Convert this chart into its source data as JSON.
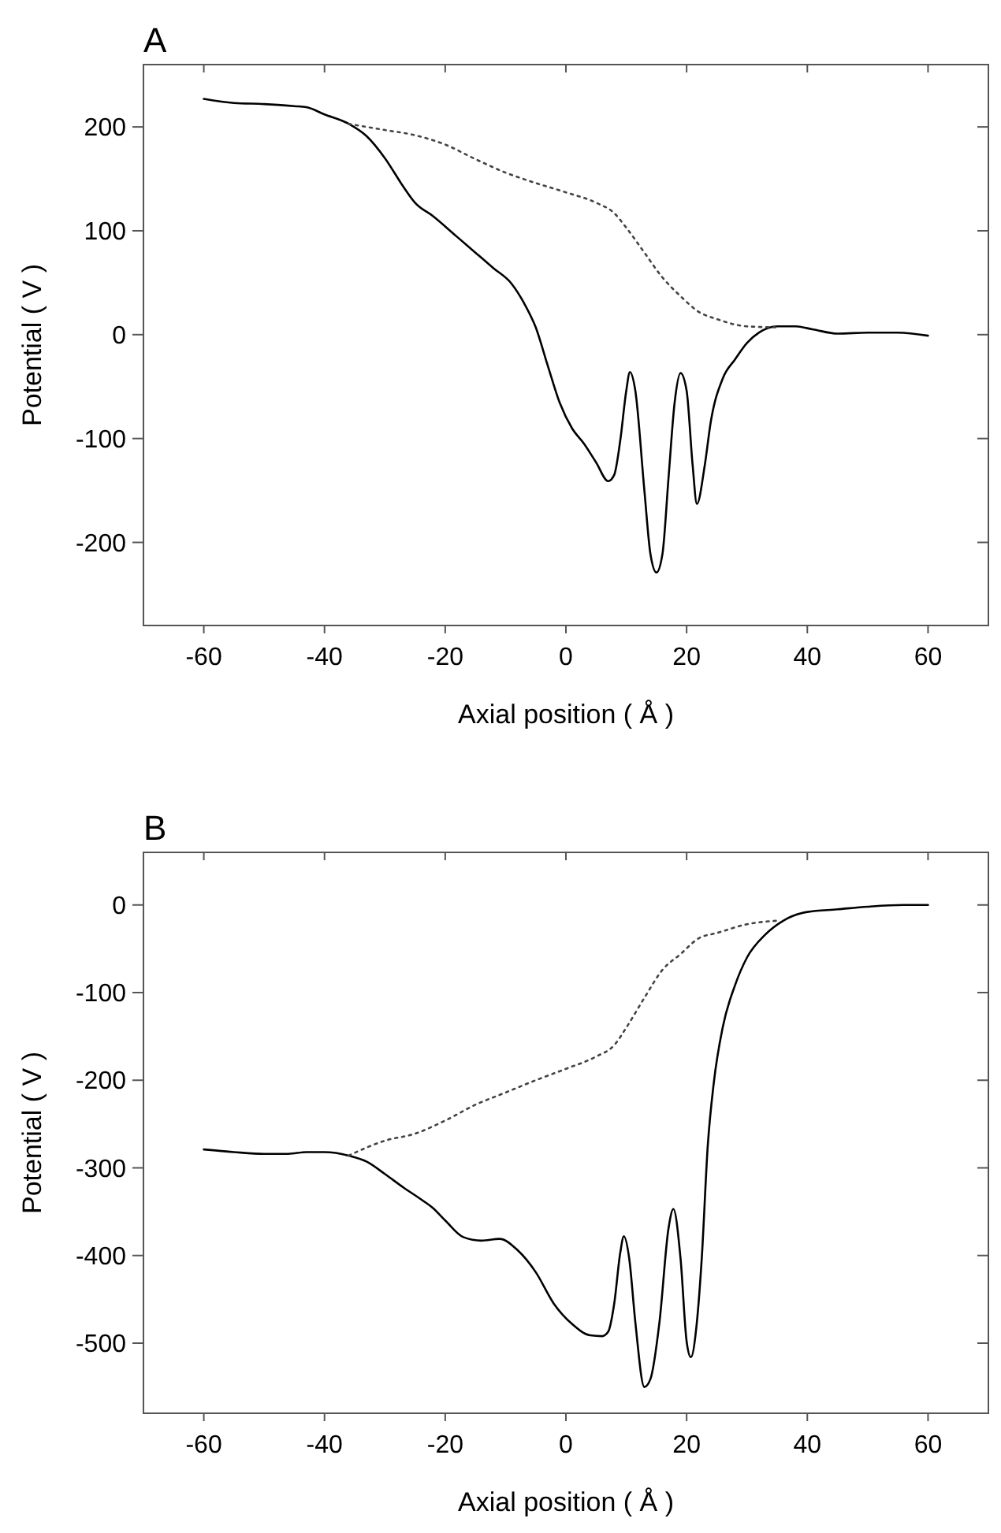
{
  "chart_data": [
    {
      "type": "line",
      "title": "A",
      "xlabel": "Axial position ( Å )",
      "ylabel": "Potential ( V )",
      "xlim": [
        -70,
        70
      ],
      "xticks": [
        -60,
        -40,
        -20,
        0,
        20,
        40,
        60
      ],
      "ylim": [
        -280,
        260
      ],
      "yticks": [
        -200,
        -100,
        0,
        100,
        200
      ],
      "grid": false,
      "series": [
        {
          "color": "#000000",
          "line_style": "solid",
          "x": [
            -60,
            -55,
            -50,
            -45,
            -43,
            -40,
            -36,
            -33,
            -30,
            -27,
            -25,
            -22,
            -18,
            -15,
            -12,
            -9,
            -7,
            -5,
            -3,
            -1,
            1,
            3,
            5,
            7,
            8,
            9,
            10,
            10.6,
            11.5,
            13,
            14,
            15,
            16,
            17,
            18,
            19,
            20,
            21,
            21.7,
            23,
            24,
            26,
            28,
            30,
            32,
            35,
            38,
            41,
            45,
            50,
            55,
            60
          ],
          "values": [
            227,
            223,
            222,
            220,
            219,
            212,
            203,
            191,
            170,
            143,
            127,
            114,
            94,
            79,
            64,
            49,
            31,
            7,
            -30,
            -66,
            -90,
            -105,
            -123,
            -141,
            -135,
            -102,
            -54,
            -36,
            -54,
            -150,
            -211,
            -229,
            -211,
            -138,
            -66,
            -37,
            -54,
            -126,
            -163,
            -126,
            -84,
            -42,
            -24,
            -8,
            2,
            8,
            8,
            5,
            1,
            2,
            2,
            -1
          ]
        },
        {
          "color": "#444444",
          "line_style": "dotted",
          "x": [
            -36,
            -30,
            -25,
            -20,
            -15,
            -10,
            -5,
            0,
            5,
            8,
            10,
            13,
            16,
            19,
            22,
            25,
            30,
            35
          ],
          "values": [
            203,
            197,
            192,
            183,
            169,
            156,
            146,
            137,
            127,
            117,
            103,
            79,
            55,
            37,
            22,
            15,
            8,
            7
          ]
        }
      ]
    },
    {
      "type": "line",
      "title": "B",
      "xlabel": "Axial position ( Å )",
      "ylabel": "Potential ( V )",
      "xlim": [
        -70,
        70
      ],
      "xticks": [
        -60,
        -40,
        -20,
        0,
        20,
        40,
        60
      ],
      "ylim": [
        -580,
        60
      ],
      "yticks": [
        -500,
        -400,
        -300,
        -200,
        -100,
        0
      ],
      "grid": false,
      "series": [
        {
          "color": "#000000",
          "line_style": "solid",
          "x": [
            -60,
            -55,
            -50,
            -46,
            -43,
            -40,
            -36,
            -33,
            -30,
            -27,
            -24,
            -22,
            -20,
            -17,
            -14,
            -11,
            -8,
            -5,
            -2,
            1,
            4,
            6,
            7,
            8,
            9,
            9.6,
            10.5,
            11.5,
            13,
            14,
            15.5,
            17,
            17.8,
            19,
            20,
            20.7,
            21.7,
            22.5,
            23.5,
            24.5,
            26,
            28,
            30,
            33,
            36,
            40,
            45,
            50,
            56,
            60
          ],
          "values": [
            -279,
            -282,
            -284,
            -284,
            -282,
            -282,
            -286,
            -293,
            -307,
            -322,
            -336,
            -346,
            -360,
            -379,
            -383,
            -381,
            -394,
            -419,
            -455,
            -478,
            -491,
            -492,
            -487,
            -455,
            -397,
            -378,
            -404,
            -476,
            -550,
            -541,
            -476,
            -369,
            -347,
            -404,
            -498,
            -516,
            -476,
            -404,
            -275,
            -203,
            -139,
            -92,
            -60,
            -34,
            -18,
            -8,
            -5,
            -2,
            0,
            0
          ]
        },
        {
          "color": "#444444",
          "line_style": "dotted",
          "x": [
            -36,
            -30,
            -25,
            -20,
            -15,
            -10,
            -5,
            0,
            5,
            8,
            10,
            13,
            16,
            19,
            22,
            25,
            30,
            35
          ],
          "values": [
            -286,
            -269,
            -261,
            -246,
            -228,
            -214,
            -200,
            -187,
            -173,
            -160,
            -140,
            -106,
            -74,
            -56,
            -38,
            -32,
            -22,
            -18
          ]
        }
      ]
    }
  ]
}
